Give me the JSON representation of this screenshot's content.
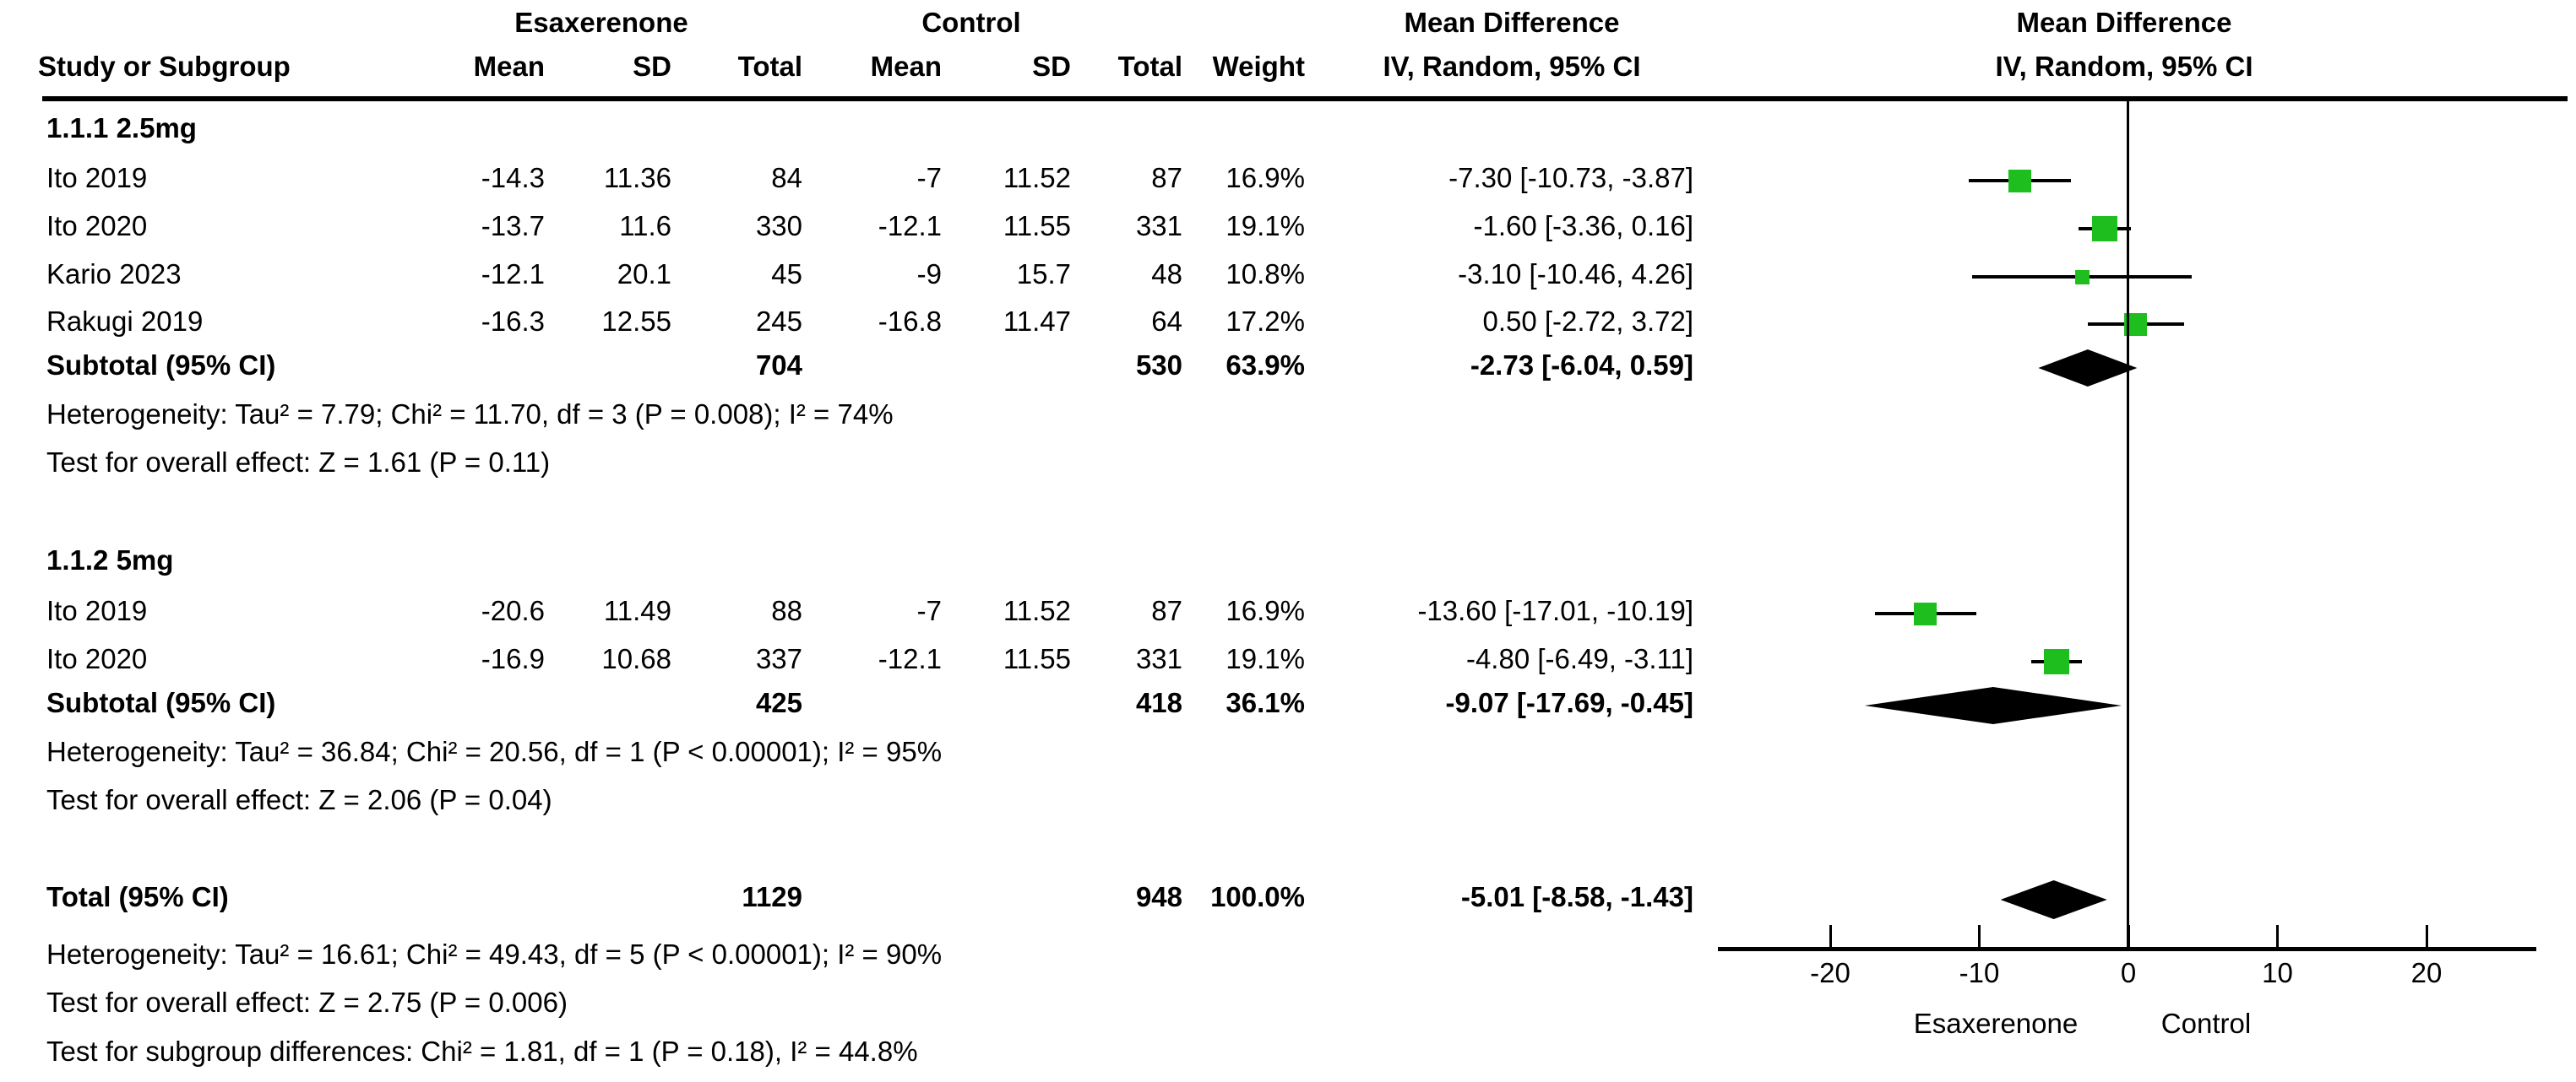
{
  "header": {
    "group1": "Esaxerenone",
    "group2": "Control",
    "col_study": "Study or Subgroup",
    "col_mean": "Mean",
    "col_sd": "SD",
    "col_total": "Total",
    "col_weight": "Weight",
    "md_text_title": "Mean Difference",
    "md_text_sub": "IV, Random, 95% CI",
    "md_plot_title": "Mean Difference",
    "md_plot_sub": "IV, Random, 95% CI"
  },
  "groups": [
    {
      "title": "1.1.1 2.5mg",
      "studies": [
        {
          "study": "Ito 2019",
          "mean1": "-14.3",
          "sd1": "11.36",
          "total1": "84",
          "mean2": "-7",
          "sd2": "11.52",
          "total2": "87",
          "weight": "16.9%",
          "ci_text": "-7.30 [-10.73, -3.87]",
          "est": -7.3,
          "lo": -10.73,
          "hi": -3.87,
          "weight_pct": 16.9
        },
        {
          "study": "Ito 2020",
          "mean1": "-13.7",
          "sd1": "11.6",
          "total1": "330",
          "mean2": "-12.1",
          "sd2": "11.55",
          "total2": "331",
          "weight": "19.1%",
          "ci_text": "-1.60 [-3.36, 0.16]",
          "est": -1.6,
          "lo": -3.36,
          "hi": 0.16,
          "weight_pct": 19.1
        },
        {
          "study": "Kario 2023",
          "mean1": "-12.1",
          "sd1": "20.1",
          "total1": "45",
          "mean2": "-9",
          "sd2": "15.7",
          "total2": "48",
          "weight": "10.8%",
          "ci_text": "-3.10 [-10.46, 4.26]",
          "est": -3.1,
          "lo": -10.46,
          "hi": 4.26,
          "weight_pct": 10.8
        },
        {
          "study": "Rakugi 2019",
          "mean1": "-16.3",
          "sd1": "12.55",
          "total1": "245",
          "mean2": "-16.8",
          "sd2": "11.47",
          "total2": "64",
          "weight": "17.2%",
          "ci_text": "0.50 [-2.72, 3.72]",
          "est": 0.5,
          "lo": -2.72,
          "hi": 3.72,
          "weight_pct": 17.2
        }
      ],
      "subtotal": {
        "label": "Subtotal (95% CI)",
        "total1": "704",
        "total2": "530",
        "weight": "63.9%",
        "ci_text": "-2.73 [-6.04, 0.59]",
        "est": -2.73,
        "lo": -6.04,
        "hi": 0.59
      },
      "heterogeneity": "Heterogeneity: Tau² = 7.79; Chi² = 11.70, df = 3 (P = 0.008); I² = 74%",
      "overall_effect": "Test for overall effect: Z = 1.61 (P = 0.11)"
    },
    {
      "title": "1.1.2 5mg",
      "studies": [
        {
          "study": "Ito 2019",
          "mean1": "-20.6",
          "sd1": "11.49",
          "total1": "88",
          "mean2": "-7",
          "sd2": "11.52",
          "total2": "87",
          "weight": "16.9%",
          "ci_text": "-13.60 [-17.01, -10.19]",
          "est": -13.6,
          "lo": -17.01,
          "hi": -10.19,
          "weight_pct": 16.9
        },
        {
          "study": "Ito 2020",
          "mean1": "-16.9",
          "sd1": "10.68",
          "total1": "337",
          "mean2": "-12.1",
          "sd2": "11.55",
          "total2": "331",
          "weight": "19.1%",
          "ci_text": "-4.80 [-6.49, -3.11]",
          "est": -4.8,
          "lo": -6.49,
          "hi": -3.11,
          "weight_pct": 19.1
        }
      ],
      "subtotal": {
        "label": "Subtotal (95% CI)",
        "total1": "425",
        "total2": "418",
        "weight": "36.1%",
        "ci_text": "-9.07 [-17.69, -0.45]",
        "est": -9.07,
        "lo": -17.69,
        "hi": -0.45
      },
      "heterogeneity": "Heterogeneity: Tau² = 36.84; Chi² = 20.56, df = 1 (P < 0.00001); I² = 95%",
      "overall_effect": "Test for overall effect: Z = 2.06 (P = 0.04)"
    }
  ],
  "total": {
    "label": "Total (95% CI)",
    "total1": "1129",
    "total2": "948",
    "weight": "100.0%",
    "ci_text": "-5.01 [-8.58, -1.43]",
    "est": -5.01,
    "lo": -8.58,
    "hi": -1.43
  },
  "footer": {
    "heterogeneity": "Heterogeneity: Tau² = 16.61; Chi² = 49.43, df = 5 (P < 0.00001); I² = 90%",
    "overall_effect": "Test for overall effect: Z = 2.75 (P = 0.006)",
    "subgroup_differences": "Test for subgroup differences: Chi² = 1.81, df = 1 (P = 0.18), I² = 44.8%"
  },
  "axis": {
    "ticks": [
      "-20",
      "-10",
      "0",
      "10",
      "20"
    ],
    "tick_values": [
      -20,
      -10,
      0,
      10,
      20
    ],
    "min": -27.5,
    "max": 27.5,
    "favours_left": "Esaxerenone",
    "favours_right": "Control"
  },
  "colors": {
    "square": "#1FBE1F",
    "diamond": "#000000",
    "line": "#000000"
  },
  "chart_data": {
    "type": "forest",
    "effect_measure": "Mean Difference",
    "model": "IV, Random, 95% CI",
    "xlim": [
      -27.5,
      27.5
    ],
    "x_ticks": [
      -20,
      -10,
      0,
      10,
      20
    ],
    "zero_line": 0,
    "favours": {
      "left": "Esaxerenone",
      "right": "Control"
    },
    "subgroups": [
      {
        "name": "1.1.1 2.5mg",
        "points": [
          {
            "study": "Ito 2019",
            "md": -7.3,
            "ci": [
              -10.73,
              -3.87
            ],
            "weight_pct": 16.9
          },
          {
            "study": "Ito 2020",
            "md": -1.6,
            "ci": [
              -3.36,
              0.16
            ],
            "weight_pct": 19.1
          },
          {
            "study": "Kario 2023",
            "md": -3.1,
            "ci": [
              -10.46,
              4.26
            ],
            "weight_pct": 10.8
          },
          {
            "study": "Rakugi 2019",
            "md": 0.5,
            "ci": [
              -2.72,
              3.72
            ],
            "weight_pct": 17.2
          }
        ],
        "subtotal": {
          "md": -2.73,
          "ci": [
            -6.04,
            0.59
          ],
          "weight_pct": 63.9
        }
      },
      {
        "name": "1.1.2 5mg",
        "points": [
          {
            "study": "Ito 2019",
            "md": -13.6,
            "ci": [
              -17.01,
              -10.19
            ],
            "weight_pct": 16.9
          },
          {
            "study": "Ito 2020",
            "md": -4.8,
            "ci": [
              -6.49,
              -3.11
            ],
            "weight_pct": 19.1
          }
        ],
        "subtotal": {
          "md": -9.07,
          "ci": [
            -17.69,
            -0.45
          ],
          "weight_pct": 36.1
        }
      }
    ],
    "total": {
      "md": -5.01,
      "ci": [
        -8.58,
        -1.43
      ],
      "weight_pct": 100.0
    }
  }
}
